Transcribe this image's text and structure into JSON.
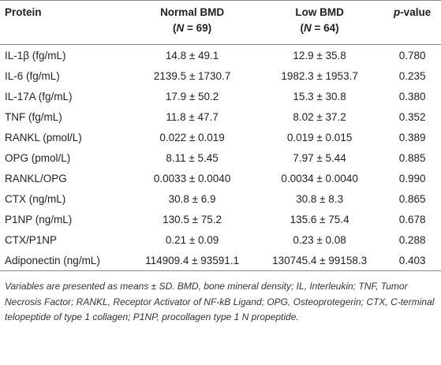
{
  "table": {
    "columns": [
      {
        "label": [
          "Protein"
        ]
      },
      {
        "label": [
          "Normal BMD"
        ],
        "sub": [
          "(",
          "N",
          " = 69)"
        ]
      },
      {
        "label": [
          "Low BMD"
        ],
        "sub": [
          "(",
          "N",
          " = 64)"
        ]
      },
      {
        "label": [
          "p",
          "-value"
        ]
      }
    ],
    "rows": [
      [
        "IL-1β (fg/mL)",
        "14.8 ± 49.1",
        "12.9 ± 35.8",
        "0.780"
      ],
      [
        "IL-6 (fg/mL)",
        "2139.5 ± 1730.7",
        "1982.3 ± 1953.7",
        "0.235"
      ],
      [
        "IL-17A (fg/mL)",
        "17.9 ± 50.2",
        "15.3 ± 30.8",
        "0.380"
      ],
      [
        "TNF (fg/mL)",
        "11.8 ± 47.7",
        "8.02 ± 37.2",
        "0.352"
      ],
      [
        "RANKL (pmol/L)",
        "0.022 ± 0.019",
        "0.019 ± 0.015",
        "0.389"
      ],
      [
        "OPG (pmol/L)",
        "8.11 ± 5.45",
        "7.97 ± 5.44",
        "0.885"
      ],
      [
        "RANKL/OPG",
        "0.0033 ± 0.0040",
        "0.0034 ± 0.0040",
        "0.990"
      ],
      [
        "CTX (ng/mL)",
        "30.8 ± 6.9",
        "30.8 ± 8.3",
        "0.865"
      ],
      [
        "P1NP (ng/mL)",
        "130.5 ± 75.2",
        "135.6 ± 75.4",
        "0.678"
      ],
      [
        "CTX/P1NP",
        "0.21 ± 0.09",
        "0.23 ± 0.08",
        "0.288"
      ],
      [
        "Adiponectin (ng/mL)",
        "114909.4 ± 93591.1",
        "130745.4 ± 99158.3",
        "0.403"
      ]
    ],
    "footnote": "Variables are presented as means ± SD. BMD, bone mineral density; IL, Interleukin; TNF, Tumor Necrosis Factor; RANKL, Receptor Activator of NF-kB Ligand; OPG, Osteoprotegerin; CTX, C-terminal telopeptide of type 1 collagen; P1NP, procollagen type 1 N propeptide."
  }
}
